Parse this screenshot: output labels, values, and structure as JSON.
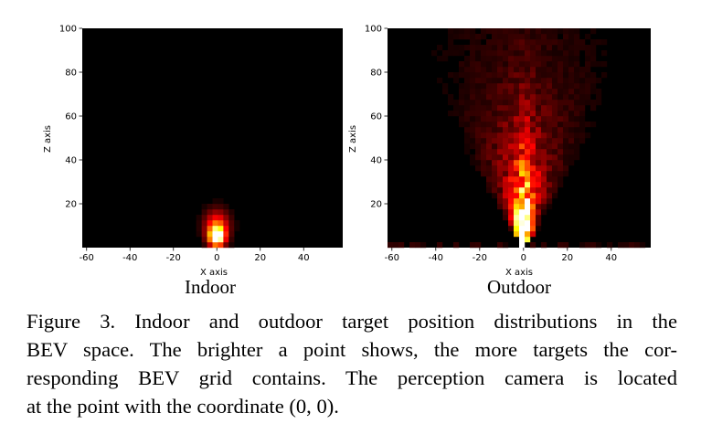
{
  "figure": {
    "panels": [
      {
        "id": "indoor",
        "subtitle": "Indoor",
        "xlabel": "X axis",
        "ylabel": "Z axis",
        "x_ticks": [
          "-60",
          "-40",
          "-20",
          "0",
          "20",
          "40"
        ],
        "y_ticks": [
          "20",
          "40",
          "60",
          "80",
          "100"
        ]
      },
      {
        "id": "outdoor",
        "subtitle": "Outdoor",
        "xlabel": "X axis",
        "ylabel": "Z axis",
        "x_ticks": [
          "-60",
          "-40",
          "-20",
          "0",
          "20",
          "40"
        ],
        "y_ticks": [
          "20",
          "40",
          "60",
          "80",
          "100"
        ]
      }
    ],
    "caption_lines": [
      "Figure 3.  Indoor and outdoor target position distributions in the",
      "BEV space. The brighter a point shows, the more targets the cor-",
      "responding BEV grid contains. The perception camera is located",
      "at the point with the coordinate (0, 0)."
    ]
  },
  "chart_data": [
    {
      "type": "heatmap",
      "title": "Indoor",
      "xlabel": "X axis",
      "ylabel": "Z axis",
      "xlim": [
        -62,
        58
      ],
      "ylim": [
        0,
        100
      ],
      "colormap": "hot",
      "background": "#000000",
      "hotspots": [
        {
          "x": 0,
          "z": 5,
          "spread_x": 2.5,
          "spread_z": 3,
          "intensity": 1.0
        },
        {
          "x": 0,
          "z": 10,
          "spread_x": 4,
          "spread_z": 5,
          "intensity": 0.45
        }
      ]
    },
    {
      "type": "heatmap",
      "title": "Outdoor",
      "xlabel": "X axis",
      "ylabel": "Z axis",
      "xlim": [
        -62,
        58
      ],
      "ylim": [
        0,
        100
      ],
      "colormap": "hot",
      "background": "#000000",
      "distribution": "fan-shaped, apex at (0, 0), brightest along x = 0 for z < 30, widening and fading with distance up to z ≈ 90",
      "hotspots": [
        {
          "x": 0,
          "z": 8,
          "spread_x": 3,
          "spread_z": 8,
          "intensity": 1.0
        },
        {
          "x": -5,
          "z": 15,
          "spread_x": 5,
          "spread_z": 10,
          "intensity": 0.8
        },
        {
          "x": 5,
          "z": 15,
          "spread_x": 5,
          "spread_z": 10,
          "intensity": 0.8
        }
      ]
    }
  ]
}
